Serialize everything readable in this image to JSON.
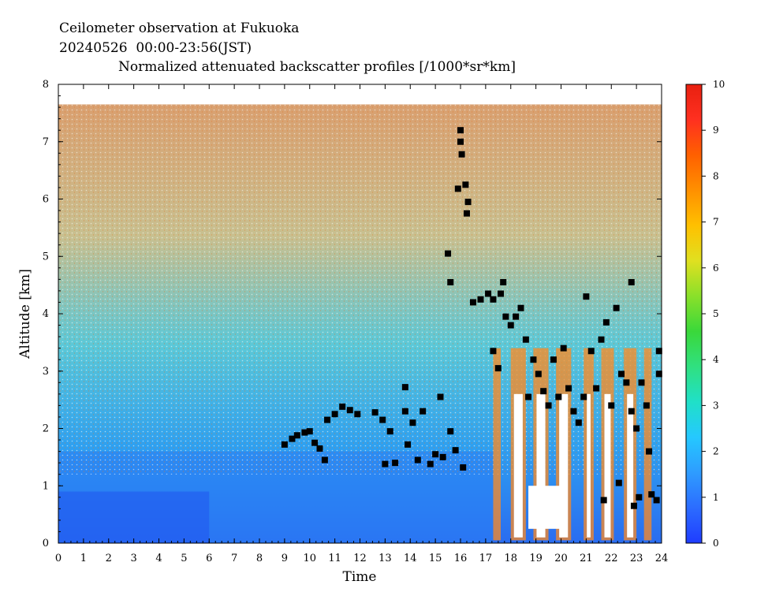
{
  "header": {
    "line1": "Ceilometer observation at Fukuoka",
    "line2": "20240526  00:00-23:56(JST)",
    "line3": "Normalized attenuated backscatter profiles [/1000*sr*km]"
  },
  "chart_data": {
    "type": "heatmap",
    "title": "Normalized attenuated backscatter profiles [/1000*sr*km]",
    "xlabel": "Time",
    "ylabel": "Altitude [km]",
    "xlim": [
      0,
      24
    ],
    "ylim": [
      0,
      8
    ],
    "x_ticks": [
      "0",
      "1",
      "2",
      "3",
      "4",
      "5",
      "6",
      "7",
      "8",
      "9",
      "10",
      "11",
      "12",
      "13",
      "14",
      "15",
      "16",
      "17",
      "18",
      "19",
      "20",
      "21",
      "22",
      "23",
      "24"
    ],
    "y_ticks": [
      "0",
      "1",
      "2",
      "3",
      "4",
      "5",
      "6",
      "7",
      "8"
    ],
    "colorbar": {
      "range": [
        0,
        10
      ],
      "ticks": [
        "0",
        "1",
        "2",
        "3",
        "4",
        "5",
        "6",
        "7",
        "8",
        "9",
        "10"
      ],
      "colors": [
        "#1f3cff",
        "#2c6cff",
        "#2e9cff",
        "#25c8ff",
        "#20e0c8",
        "#30e080",
        "#3ad83a",
        "#8ae02a",
        "#e0e020",
        "#ffc000",
        "#ff9000",
        "#ff6000",
        "#ff3020",
        "#e82010"
      ]
    },
    "cloud_base_points": [
      {
        "x": 9.0,
        "y": 1.72
      },
      {
        "x": 9.3,
        "y": 1.82
      },
      {
        "x": 9.5,
        "y": 1.88
      },
      {
        "x": 9.8,
        "y": 1.93
      },
      {
        "x": 10.0,
        "y": 1.95
      },
      {
        "x": 10.2,
        "y": 1.75
      },
      {
        "x": 10.4,
        "y": 1.65
      },
      {
        "x": 10.6,
        "y": 1.45
      },
      {
        "x": 10.7,
        "y": 2.15
      },
      {
        "x": 11.0,
        "y": 2.25
      },
      {
        "x": 11.3,
        "y": 2.38
      },
      {
        "x": 11.6,
        "y": 2.32
      },
      {
        "x": 11.9,
        "y": 2.25
      },
      {
        "x": 12.6,
        "y": 2.28
      },
      {
        "x": 12.9,
        "y": 2.15
      },
      {
        "x": 13.2,
        "y": 1.95
      },
      {
        "x": 13.0,
        "y": 1.38
      },
      {
        "x": 13.4,
        "y": 1.4
      },
      {
        "x": 13.8,
        "y": 2.3
      },
      {
        "x": 13.9,
        "y": 1.72
      },
      {
        "x": 13.8,
        "y": 2.72
      },
      {
        "x": 14.1,
        "y": 2.1
      },
      {
        "x": 14.3,
        "y": 1.45
      },
      {
        "x": 14.5,
        "y": 2.3
      },
      {
        "x": 14.8,
        "y": 1.38
      },
      {
        "x": 15.0,
        "y": 1.55
      },
      {
        "x": 15.2,
        "y": 2.55
      },
      {
        "x": 15.3,
        "y": 1.5
      },
      {
        "x": 15.6,
        "y": 1.95
      },
      {
        "x": 15.8,
        "y": 1.62
      },
      {
        "x": 16.1,
        "y": 1.32
      },
      {
        "x": 15.5,
        "y": 5.05
      },
      {
        "x": 15.6,
        "y": 4.55
      },
      {
        "x": 15.9,
        "y": 6.18
      },
      {
        "x": 16.0,
        "y": 7.2
      },
      {
        "x": 16.0,
        "y": 7.0
      },
      {
        "x": 16.05,
        "y": 6.78
      },
      {
        "x": 16.2,
        "y": 6.25
      },
      {
        "x": 16.3,
        "y": 5.95
      },
      {
        "x": 16.25,
        "y": 5.75
      },
      {
        "x": 16.5,
        "y": 4.2
      },
      {
        "x": 16.8,
        "y": 4.25
      },
      {
        "x": 17.1,
        "y": 4.35
      },
      {
        "x": 17.3,
        "y": 4.25
      },
      {
        "x": 17.6,
        "y": 4.35
      },
      {
        "x": 17.7,
        "y": 4.55
      },
      {
        "x": 17.3,
        "y": 3.35
      },
      {
        "x": 17.5,
        "y": 3.05
      },
      {
        "x": 17.8,
        "y": 3.95
      },
      {
        "x": 18.0,
        "y": 3.8
      },
      {
        "x": 18.2,
        "y": 3.95
      },
      {
        "x": 18.4,
        "y": 4.1
      },
      {
        "x": 18.6,
        "y": 3.55
      },
      {
        "x": 18.7,
        "y": 2.55
      },
      {
        "x": 18.9,
        "y": 3.2
      },
      {
        "x": 19.1,
        "y": 2.95
      },
      {
        "x": 19.3,
        "y": 2.65
      },
      {
        "x": 19.5,
        "y": 2.4
      },
      {
        "x": 19.7,
        "y": 3.2
      },
      {
        "x": 19.9,
        "y": 2.55
      },
      {
        "x": 20.1,
        "y": 3.4
      },
      {
        "x": 20.3,
        "y": 2.7
      },
      {
        "x": 20.5,
        "y": 2.3
      },
      {
        "x": 20.7,
        "y": 2.1
      },
      {
        "x": 20.9,
        "y": 2.55
      },
      {
        "x": 21.0,
        "y": 4.3
      },
      {
        "x": 21.2,
        "y": 3.35
      },
      {
        "x": 21.4,
        "y": 2.7
      },
      {
        "x": 21.6,
        "y": 3.55
      },
      {
        "x": 21.8,
        "y": 3.85
      },
      {
        "x": 22.0,
        "y": 2.4
      },
      {
        "x": 22.2,
        "y": 4.1
      },
      {
        "x": 22.4,
        "y": 2.95
      },
      {
        "x": 22.6,
        "y": 2.8
      },
      {
        "x": 22.8,
        "y": 4.55
      },
      {
        "x": 22.8,
        "y": 2.3
      },
      {
        "x": 23.0,
        "y": 2.0
      },
      {
        "x": 23.2,
        "y": 2.8
      },
      {
        "x": 23.4,
        "y": 2.4
      },
      {
        "x": 23.5,
        "y": 1.6
      },
      {
        "x": 23.6,
        "y": 0.85
      },
      {
        "x": 23.8,
        "y": 0.75
      },
      {
        "x": 23.9,
        "y": 3.35
      },
      {
        "x": 23.9,
        "y": 2.95
      },
      {
        "x": 22.9,
        "y": 0.65
      },
      {
        "x": 22.3,
        "y": 1.05
      },
      {
        "x": 21.7,
        "y": 0.75
      },
      {
        "x": 23.1,
        "y": 0.8
      }
    ]
  }
}
